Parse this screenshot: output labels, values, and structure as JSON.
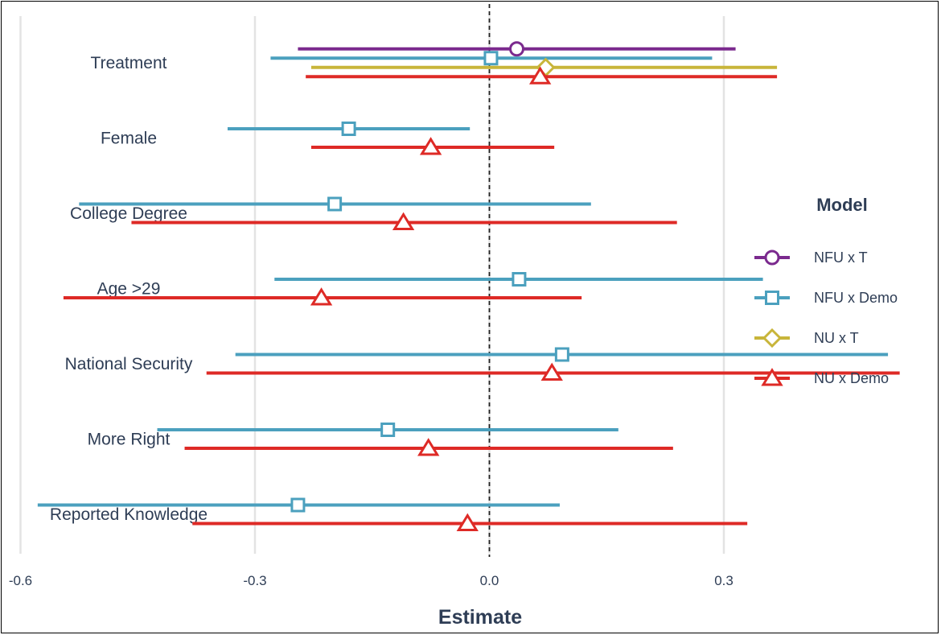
{
  "chart_data": {
    "type": "forest",
    "xlabel": "Estimate",
    "xlim": [
      -0.62,
      0.54
    ],
    "xticks": [
      -0.6,
      -0.3,
      0.0,
      0.3
    ],
    "xtick_labels": [
      "-0.6",
      "-0.3",
      "0.0",
      "0.3"
    ],
    "zero_line": "dashed",
    "grid": "vertical major",
    "categories": [
      "Treatment",
      "Female",
      "College Degree",
      "Age >29",
      "National Security",
      "More Right",
      "Reported Knowledge"
    ],
    "legend": {
      "title": "Model",
      "placement": "right"
    },
    "series": [
      {
        "name": "NFU x T",
        "color": "#7b2a8e",
        "marker": "circle",
        "points": [
          {
            "category": "Treatment",
            "estimate": 0.035,
            "low": -0.245,
            "high": 0.315
          }
        ]
      },
      {
        "name": "NFU x Demo",
        "color": "#4ba0be",
        "marker": "square",
        "points": [
          {
            "category": "Treatment",
            "estimate": 0.002,
            "low": -0.28,
            "high": 0.285
          },
          {
            "category": "Female",
            "estimate": -0.18,
            "low": -0.335,
            "high": -0.025
          },
          {
            "category": "College Degree",
            "estimate": -0.198,
            "low": -0.525,
            "high": 0.13
          },
          {
            "category": "Age >29",
            "estimate": 0.038,
            "low": -0.275,
            "high": 0.35
          },
          {
            "category": "National Security",
            "estimate": 0.093,
            "low": -0.325,
            "high": 0.51
          },
          {
            "category": "More Right",
            "estimate": -0.13,
            "low": -0.425,
            "high": 0.165
          },
          {
            "category": "Reported Knowledge",
            "estimate": -0.245,
            "low": -0.578,
            "high": 0.09
          }
        ]
      },
      {
        "name": "NU x T",
        "color": "#c8b53a",
        "marker": "diamond",
        "points": [
          {
            "category": "Treatment",
            "estimate": 0.072,
            "low": -0.228,
            "high": 0.368
          }
        ]
      },
      {
        "name": "NU x Demo",
        "color": "#de2a26",
        "marker": "triangle",
        "points": [
          {
            "category": "Treatment",
            "estimate": 0.065,
            "low": -0.235,
            "high": 0.368
          },
          {
            "category": "Female",
            "estimate": -0.075,
            "low": -0.228,
            "high": 0.083
          },
          {
            "category": "College Degree",
            "estimate": -0.11,
            "low": -0.458,
            "high": 0.24
          },
          {
            "category": "Age >29",
            "estimate": -0.215,
            "low": -0.545,
            "high": 0.118
          },
          {
            "category": "National Security",
            "estimate": 0.08,
            "low": -0.362,
            "high": 0.525
          },
          {
            "category": "More Right",
            "estimate": -0.078,
            "low": -0.39,
            "high": 0.235
          },
          {
            "category": "Reported Knowledge",
            "estimate": -0.028,
            "low": -0.38,
            "high": 0.33
          }
        ]
      }
    ]
  }
}
